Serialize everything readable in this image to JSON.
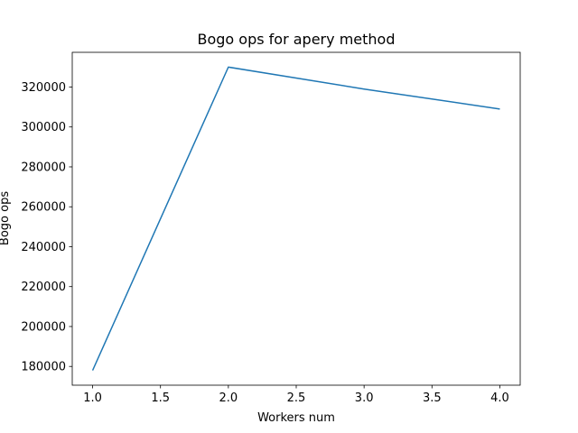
{
  "chart_data": {
    "type": "line",
    "title": "Bogo ops for apery method",
    "xlabel": "Workers num",
    "ylabel": "Bogo ops",
    "x": [
      1,
      2,
      3,
      4
    ],
    "series": [
      {
        "values": [
          178000,
          330000,
          319000,
          309000
        ],
        "color": "#1f77b4"
      }
    ],
    "xlim": [
      0.85,
      4.15
    ],
    "ylim": [
      170600,
      337400
    ],
    "xticks": [
      1.0,
      1.5,
      2.0,
      2.5,
      3.0,
      3.5,
      4.0
    ],
    "xtick_labels": [
      "1.0",
      "1.5",
      "2.0",
      "2.5",
      "3.0",
      "3.5",
      "4.0"
    ],
    "yticks": [
      180000,
      200000,
      220000,
      240000,
      260000,
      280000,
      300000,
      320000
    ],
    "ytick_labels": [
      "180000",
      "200000",
      "220000",
      "240000",
      "260000",
      "280000",
      "300000",
      "320000"
    ],
    "grid": false,
    "legend": "none"
  }
}
